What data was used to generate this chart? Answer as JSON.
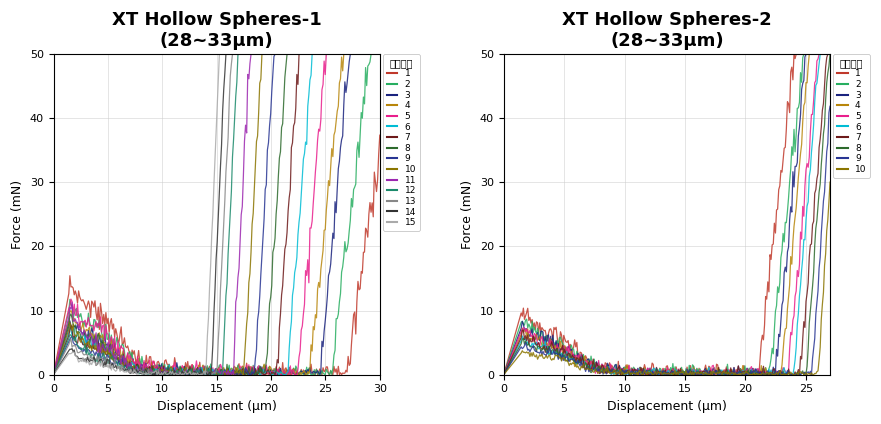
{
  "plot1": {
    "title_line1": "XT Hollow Spheres-1",
    "title_line2": "(28~33μm)",
    "xlabel": "Displacement (μm)",
    "ylabel": "Force (mN)",
    "xlim": [
      0,
      30
    ],
    "ylim": [
      0,
      50
    ],
    "xticks": [
      0,
      5,
      10,
      15,
      20,
      25,
      30
    ],
    "yticks": [
      0,
      10,
      20,
      30,
      40,
      50
    ],
    "legend_title": "加载曲线",
    "n_curves": 15,
    "colors": [
      "#c0392b",
      "#27ae60",
      "#1a237e",
      "#b8860b",
      "#e91e8c",
      "#00bcd4",
      "#6d1a1a",
      "#2d6a2d",
      "#283593",
      "#8b7500",
      "#9c27b0",
      "#1b8a6b",
      "#888888",
      "#333333",
      "#aaaaaa"
    ],
    "labels": [
      "1",
      "2",
      "3",
      "4",
      "5",
      "6",
      "7",
      "8",
      "9",
      "10",
      "11",
      "12",
      "13",
      "14",
      "15"
    ],
    "curve_params": [
      {
        "peak_x": 1.5,
        "peak_y": 13.5,
        "noise_base": 1.2,
        "rise_start": 27.0,
        "rise_slope": 12.0
      },
      {
        "peak_x": 1.5,
        "peak_y": 10.5,
        "noise_base": 1.0,
        "rise_start": 25.5,
        "rise_slope": 14.0
      },
      {
        "peak_x": 1.5,
        "peak_y": 8.0,
        "noise_base": 0.8,
        "rise_start": 24.5,
        "rise_slope": 18.0
      },
      {
        "peak_x": 1.5,
        "peak_y": 9.0,
        "noise_base": 0.9,
        "rise_start": 23.5,
        "rise_slope": 16.0
      },
      {
        "peak_x": 1.5,
        "peak_y": 11.0,
        "noise_base": 1.1,
        "rise_start": 22.5,
        "rise_slope": 20.0
      },
      {
        "peak_x": 1.5,
        "peak_y": 7.0,
        "noise_base": 0.7,
        "rise_start": 21.5,
        "rise_slope": 22.0
      },
      {
        "peak_x": 1.5,
        "peak_y": 6.5,
        "noise_base": 0.7,
        "rise_start": 20.5,
        "rise_slope": 24.0
      },
      {
        "peak_x": 1.5,
        "peak_y": 8.5,
        "noise_base": 0.8,
        "rise_start": 19.5,
        "rise_slope": 26.0
      },
      {
        "peak_x": 1.5,
        "peak_y": 5.5,
        "noise_base": 0.6,
        "rise_start": 18.5,
        "rise_slope": 28.0
      },
      {
        "peak_x": 1.5,
        "peak_y": 7.5,
        "noise_base": 0.7,
        "rise_start": 17.5,
        "rise_slope": 30.0
      },
      {
        "peak_x": 1.5,
        "peak_y": 9.5,
        "noise_base": 0.8,
        "rise_start": 16.5,
        "rise_slope": 32.0
      },
      {
        "peak_x": 1.5,
        "peak_y": 6.0,
        "noise_base": 0.6,
        "rise_start": 15.5,
        "rise_slope": 34.0
      },
      {
        "peak_x": 1.5,
        "peak_y": 5.0,
        "noise_base": 0.5,
        "rise_start": 15.0,
        "rise_slope": 36.0
      },
      {
        "peak_x": 1.5,
        "peak_y": 4.0,
        "noise_base": 0.4,
        "rise_start": 14.5,
        "rise_slope": 38.0
      },
      {
        "peak_x": 1.5,
        "peak_y": 3.5,
        "noise_base": 0.4,
        "rise_start": 14.0,
        "rise_slope": 40.0
      }
    ]
  },
  "plot2": {
    "title_line1": "XT Hollow Spheres-2",
    "title_line2": "(28~33μm)",
    "xlabel": "Displacement (μm)",
    "ylabel": "Force (mN)",
    "xlim": [
      0,
      27
    ],
    "ylim": [
      0,
      50
    ],
    "xticks": [
      0,
      5,
      10,
      15,
      20,
      25
    ],
    "yticks": [
      0,
      10,
      20,
      30,
      40,
      50
    ],
    "legend_title": "加载曲线",
    "n_curves": 10,
    "colors": [
      "#c0392b",
      "#27ae60",
      "#1a237e",
      "#b8860b",
      "#e91e8c",
      "#00bcd4",
      "#6d1a1a",
      "#2d6a2d",
      "#283593",
      "#8b7500"
    ],
    "labels": [
      "1",
      "2",
      "3",
      "4",
      "5",
      "6",
      "7",
      "8",
      "9",
      "10"
    ],
    "curve_params": [
      {
        "peak_x": 1.5,
        "peak_y": 10.0,
        "noise_base": 1.0,
        "rise_start": 21.0,
        "rise_slope": 16.0
      },
      {
        "peak_x": 1.5,
        "peak_y": 8.5,
        "noise_base": 0.9,
        "rise_start": 22.0,
        "rise_slope": 18.0
      },
      {
        "peak_x": 1.5,
        "peak_y": 7.5,
        "noise_base": 0.8,
        "rise_start": 22.5,
        "rise_slope": 20.0
      },
      {
        "peak_x": 1.5,
        "peak_y": 6.5,
        "noise_base": 0.7,
        "rise_start": 23.0,
        "rise_slope": 22.0
      },
      {
        "peak_x": 1.5,
        "peak_y": 7.0,
        "noise_base": 0.8,
        "rise_start": 23.5,
        "rise_slope": 20.0
      },
      {
        "peak_x": 1.5,
        "peak_y": 5.5,
        "noise_base": 0.6,
        "rise_start": 24.0,
        "rise_slope": 24.0
      },
      {
        "peak_x": 1.5,
        "peak_y": 6.0,
        "noise_base": 0.7,
        "rise_start": 24.5,
        "rise_slope": 22.0
      },
      {
        "peak_x": 1.5,
        "peak_y": 5.0,
        "noise_base": 0.5,
        "rise_start": 25.0,
        "rise_slope": 26.0
      },
      {
        "peak_x": 1.5,
        "peak_y": 4.5,
        "noise_base": 0.5,
        "rise_start": 25.5,
        "rise_slope": 28.0
      },
      {
        "peak_x": 1.5,
        "peak_y": 3.5,
        "noise_base": 0.4,
        "rise_start": 26.0,
        "rise_slope": 30.0
      }
    ]
  }
}
